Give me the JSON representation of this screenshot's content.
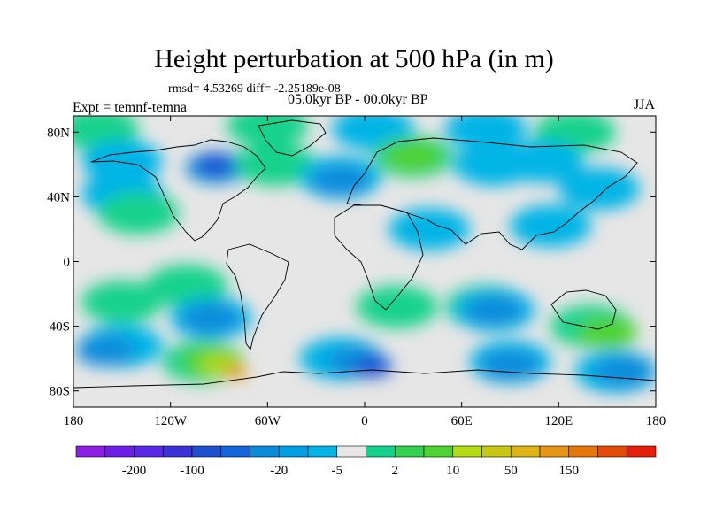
{
  "title": "Height perturbation at 500 hPa (in m)",
  "stats": "rmsd= 4.53269 diff= -2.25189e-08",
  "period": "05.0kyr BP - 00.0kyr BP",
  "expt": "Expt = temnf-temna",
  "season": "JJA",
  "map": {
    "lat_labels": [
      {
        "value": 80,
        "text": "80N"
      },
      {
        "value": 40,
        "text": "40N"
      },
      {
        "value": 0,
        "text": "0"
      },
      {
        "value": -40,
        "text": "40S"
      },
      {
        "value": -80,
        "text": "80S"
      }
    ],
    "lon_labels": [
      {
        "value": -180,
        "text": "180"
      },
      {
        "value": -120,
        "text": "120W"
      },
      {
        "value": -60,
        "text": "60W"
      },
      {
        "value": 0,
        "text": "0"
      },
      {
        "value": 60,
        "text": "60E"
      },
      {
        "value": 120,
        "text": "120E"
      },
      {
        "value": 180,
        "text": "180"
      }
    ],
    "background_color": "#e6e6e6",
    "level_colors": {
      "neg5": "#00b4e6",
      "neg20": "#0a8cdc",
      "neg100": "#1e50d2",
      "pos2": "#14d28c",
      "pos10": "#50d232",
      "pos50": "#b4dc14",
      "pos150": "#e69614"
    },
    "anomalies": [
      {
        "lon": -165,
        "lat": 82,
        "level": "pos2"
      },
      {
        "lon": -60,
        "lat": 84,
        "level": "pos2"
      },
      {
        "lon": -150,
        "lat": 62,
        "level": "neg5"
      },
      {
        "lon": -92,
        "lat": 58,
        "level": "neg20"
      },
      {
        "lon": -92,
        "lat": 60,
        "level": "neg100"
      },
      {
        "lon": -55,
        "lat": 60,
        "level": "pos2"
      },
      {
        "lon": -15,
        "lat": 52,
        "level": "neg5"
      },
      {
        "lon": -15,
        "lat": 50,
        "level": "neg20"
      },
      {
        "lon": 5,
        "lat": 82,
        "level": "neg5"
      },
      {
        "lon": 30,
        "lat": 65,
        "level": "pos2"
      },
      {
        "lon": 30,
        "lat": 65,
        "level": "pos10"
      },
      {
        "lon": 75,
        "lat": 82,
        "level": "neg5"
      },
      {
        "lon": 130,
        "lat": 80,
        "level": "pos2"
      },
      {
        "lon": 80,
        "lat": 60,
        "level": "neg5"
      },
      {
        "lon": 110,
        "lat": 62,
        "level": "neg5"
      },
      {
        "lon": 145,
        "lat": 45,
        "level": "neg5"
      },
      {
        "lon": -150,
        "lat": 42,
        "level": "neg5"
      },
      {
        "lon": -140,
        "lat": 30,
        "level": "pos2"
      },
      {
        "lon": 40,
        "lat": 20,
        "level": "neg5"
      },
      {
        "lon": 115,
        "lat": 22,
        "level": "neg5"
      },
      {
        "lon": -110,
        "lat": -15,
        "level": "pos2"
      },
      {
        "lon": -150,
        "lat": -25,
        "level": "pos2"
      },
      {
        "lon": -95,
        "lat": -35,
        "level": "neg5"
      },
      {
        "lon": -95,
        "lat": -35,
        "level": "neg20"
      },
      {
        "lon": 75,
        "lat": -28,
        "level": "pos2"
      },
      {
        "lon": 80,
        "lat": -30,
        "level": "neg5"
      },
      {
        "lon": 80,
        "lat": -30,
        "level": "neg20"
      },
      {
        "lon": 20,
        "lat": -28,
        "level": "pos2"
      },
      {
        "lon": 140,
        "lat": -40,
        "level": "pos2"
      },
      {
        "lon": 150,
        "lat": -44,
        "level": "pos10"
      },
      {
        "lon": -150,
        "lat": -52,
        "level": "neg5"
      },
      {
        "lon": -160,
        "lat": -55,
        "level": "neg20"
      },
      {
        "lon": -100,
        "lat": -62,
        "level": "pos2"
      },
      {
        "lon": -95,
        "lat": -62,
        "level": "pos10"
      },
      {
        "lon": -90,
        "lat": -64,
        "level": "pos50"
      },
      {
        "lon": -80,
        "lat": -68,
        "level": "pos150"
      },
      {
        "lon": -15,
        "lat": -60,
        "level": "neg5"
      },
      {
        "lon": -5,
        "lat": -62,
        "level": "neg20"
      },
      {
        "lon": 5,
        "lat": -65,
        "level": "neg100"
      },
      {
        "lon": 90,
        "lat": -62,
        "level": "neg5"
      },
      {
        "lon": 90,
        "lat": -64,
        "level": "neg20"
      },
      {
        "lon": 155,
        "lat": -68,
        "level": "neg5"
      },
      {
        "lon": 160,
        "lat": -68,
        "level": "neg20"
      }
    ]
  },
  "colorbar": {
    "colors": [
      "#8c1ee6",
      "#6e1ee6",
      "#5a28e6",
      "#3c32dc",
      "#1e50d2",
      "#1464dc",
      "#0a8cdc",
      "#00a0e6",
      "#00b4e6",
      "#e6e6e6",
      "#14d28c",
      "#32d250",
      "#50d232",
      "#b4dc14",
      "#c8c814",
      "#dcb414",
      "#e69614",
      "#e6780a",
      "#e64b0a",
      "#e61e0a"
    ],
    "labels": [
      {
        "after": 1,
        "text": "-200"
      },
      {
        "after": 3,
        "text": "-100"
      },
      {
        "after": 6,
        "text": "-20"
      },
      {
        "after": 8,
        "text": "-5"
      },
      {
        "after": 10,
        "text": "2"
      },
      {
        "after": 12,
        "text": "10"
      },
      {
        "after": 14,
        "text": "50"
      },
      {
        "after": 16,
        "text": "150"
      }
    ]
  }
}
